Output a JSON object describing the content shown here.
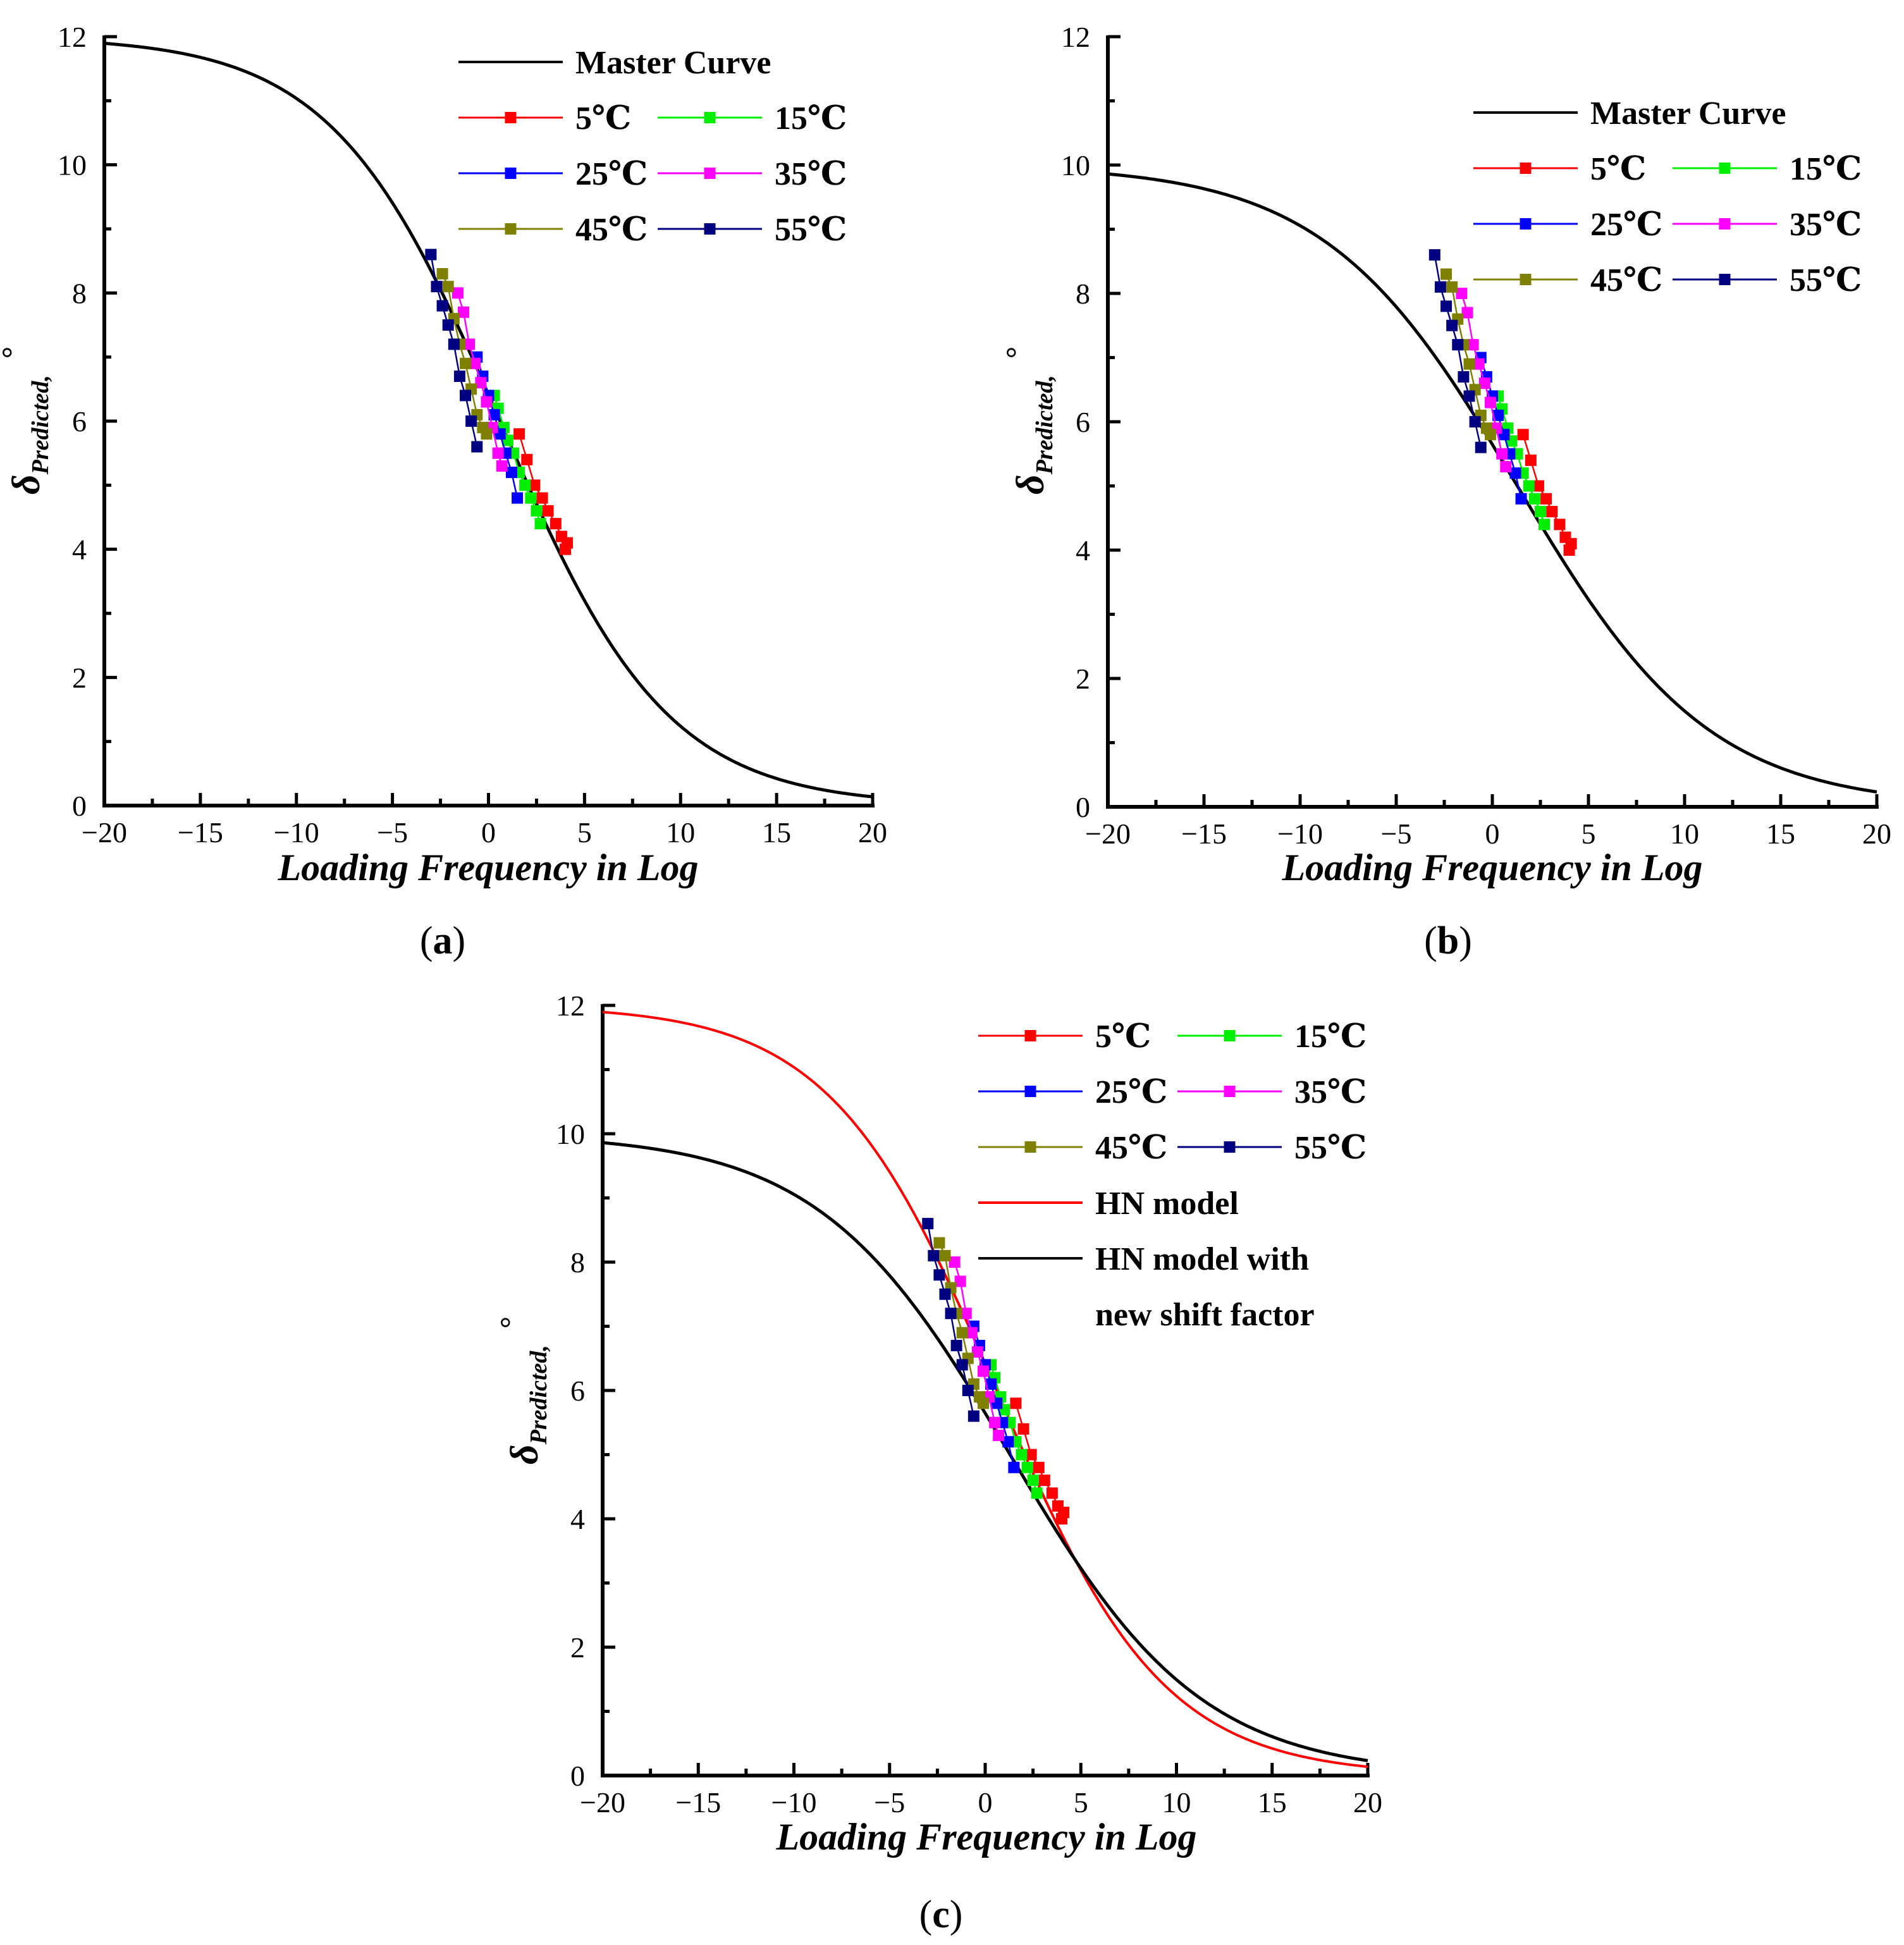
{
  "figure": {
    "panel_labels": [
      {
        "open": "(",
        "letter": "a",
        "close": ")"
      },
      {
        "open": "(",
        "letter": "b",
        "close": ")"
      },
      {
        "open": "(",
        "letter": "c",
        "close": ")"
      }
    ]
  },
  "colors": {
    "5": "#ff0000",
    "15": "#00ee00",
    "25": "#0000ff",
    "35": "#ff00ff",
    "45": "#808000",
    "55": "#000080",
    "master": "#000000",
    "hn": "#ff0000",
    "hn_new": "#000000"
  },
  "chart_data": [
    {
      "type": "line",
      "panel": "a",
      "title": "",
      "xlabel": "Loading Frequency in Log",
      "ylabel": {
        "symbol": "δ",
        "subscript": "Predicted",
        "suffix": ",",
        "unit": "°"
      },
      "xlim": [
        -20,
        20
      ],
      "ylim": [
        0,
        12
      ],
      "xticks": [
        -20,
        -15,
        -10,
        -5,
        0,
        5,
        10,
        15,
        20
      ],
      "xtick_labels": [
        "−20",
        "−15",
        "−10",
        "−5",
        "0",
        "5",
        "10",
        "15",
        "20"
      ],
      "yticks": [
        0,
        2,
        4,
        6,
        8,
        10,
        12
      ],
      "ytick_labels": [
        "0",
        "2",
        "4",
        "6",
        "8",
        "10",
        "12"
      ],
      "legend": {
        "placement": "top-right",
        "entries": [
          {
            "label": "Master Curve",
            "key": "master",
            "marker": false
          },
          {
            "label": "5℃",
            "key": "5",
            "marker": true
          },
          {
            "label": "15℃",
            "key": "15",
            "marker": true
          },
          {
            "label": "25℃",
            "key": "25",
            "marker": true
          },
          {
            "label": "35℃",
            "key": "35",
            "marker": true
          },
          {
            "label": "45℃",
            "key": "45",
            "marker": true
          },
          {
            "label": "55℃",
            "key": "55",
            "marker": true
          }
        ]
      },
      "curves": [
        {
          "name": "Master Curve",
          "key": "master",
          "dmax": 12.0,
          "xc": 0.6,
          "k": 0.23,
          "width": 5
        }
      ],
      "series": [
        {
          "name": "5℃",
          "key": "5",
          "x": [
            1.6,
            2.0,
            2.4,
            2.8,
            3.1,
            3.5,
            3.8,
            4.0,
            4.1
          ],
          "y": [
            5.8,
            5.4,
            5.0,
            4.8,
            4.6,
            4.4,
            4.2,
            4.0,
            4.1
          ]
        },
        {
          "name": "15℃",
          "key": "15",
          "x": [
            0.3,
            0.5,
            0.8,
            1.0,
            1.3,
            1.6,
            1.9,
            2.2,
            2.5,
            2.7
          ],
          "y": [
            6.4,
            6.2,
            5.9,
            5.7,
            5.5,
            5.2,
            5.0,
            4.8,
            4.6,
            4.4
          ]
        },
        {
          "name": "25℃",
          "key": "25",
          "x": [
            -0.6,
            -0.3,
            0.0,
            0.3,
            0.6,
            0.9,
            1.2,
            1.5
          ],
          "y": [
            7.0,
            6.7,
            6.4,
            6.1,
            5.8,
            5.5,
            5.2,
            4.8
          ]
        },
        {
          "name": "35℃",
          "key": "35",
          "x": [
            -1.6,
            -1.3,
            -1.0,
            -0.7,
            -0.4,
            -0.1,
            0.2,
            0.5,
            0.7
          ],
          "y": [
            8.0,
            7.7,
            7.2,
            6.9,
            6.6,
            6.3,
            5.9,
            5.5,
            5.3
          ]
        },
        {
          "name": "45℃",
          "key": "45",
          "x": [
            -2.4,
            -2.1,
            -1.8,
            -1.5,
            -1.2,
            -0.9,
            -0.6,
            -0.3,
            -0.1
          ],
          "y": [
            8.3,
            8.1,
            7.6,
            7.2,
            6.9,
            6.5,
            6.1,
            5.9,
            5.8
          ]
        },
        {
          "name": "55℃",
          "key": "55",
          "x": [
            -3.0,
            -2.7,
            -2.4,
            -2.1,
            -1.8,
            -1.5,
            -1.2,
            -0.9,
            -0.6
          ],
          "y": [
            8.6,
            8.1,
            7.8,
            7.5,
            7.2,
            6.7,
            6.4,
            6.0,
            5.6
          ]
        }
      ]
    },
    {
      "type": "line",
      "panel": "b",
      "title": "",
      "xlabel": "Loading Frequency in Log",
      "ylabel": {
        "symbol": "δ",
        "subscript": "Predicted",
        "suffix": ",",
        "unit": "°"
      },
      "xlim": [
        -20,
        20
      ],
      "ylim": [
        0,
        12
      ],
      "xticks": [
        -20,
        -15,
        -10,
        -5,
        0,
        5,
        10,
        15,
        20
      ],
      "xtick_labels": [
        "−20",
        "−15",
        "−10",
        "−5",
        "0",
        "5",
        "10",
        "15",
        "20"
      ],
      "yticks": [
        0,
        2,
        4,
        6,
        8,
        10,
        12
      ],
      "ytick_labels": [
        "0",
        "2",
        "4",
        "6",
        "8",
        "10",
        "12"
      ],
      "legend": {
        "placement": "top-right",
        "entries": [
          {
            "label": "Master Curve",
            "key": "master",
            "marker": false
          },
          {
            "label": "5℃",
            "key": "5",
            "marker": true
          },
          {
            "label": "15℃",
            "key": "15",
            "marker": true
          },
          {
            "label": "25℃",
            "key": "25",
            "marker": true
          },
          {
            "label": "35℃",
            "key": "35",
            "marker": true
          },
          {
            "label": "45℃",
            "key": "45",
            "marker": true
          },
          {
            "label": "55℃",
            "key": "55",
            "marker": true
          }
        ]
      },
      "curves": [
        {
          "name": "Master Curve",
          "key": "master",
          "dmax": 10.0,
          "xc": 1.3,
          "k": 0.2,
          "width": 5
        }
      ],
      "series": [
        {
          "name": "5℃",
          "key": "5",
          "x": [
            1.6,
            2.0,
            2.4,
            2.8,
            3.1,
            3.5,
            3.8,
            4.0,
            4.1
          ],
          "y": [
            5.8,
            5.4,
            5.0,
            4.8,
            4.6,
            4.4,
            4.2,
            4.0,
            4.1
          ]
        },
        {
          "name": "15℃",
          "key": "15",
          "x": [
            0.3,
            0.5,
            0.8,
            1.0,
            1.3,
            1.6,
            1.9,
            2.2,
            2.5,
            2.7
          ],
          "y": [
            6.4,
            6.2,
            5.9,
            5.7,
            5.5,
            5.2,
            5.0,
            4.8,
            4.6,
            4.4
          ]
        },
        {
          "name": "25℃",
          "key": "25",
          "x": [
            -0.6,
            -0.3,
            0.0,
            0.3,
            0.6,
            0.9,
            1.2,
            1.5
          ],
          "y": [
            7.0,
            6.7,
            6.4,
            6.1,
            5.8,
            5.5,
            5.2,
            4.8
          ]
        },
        {
          "name": "35℃",
          "key": "35",
          "x": [
            -1.6,
            -1.3,
            -1.0,
            -0.7,
            -0.4,
            -0.1,
            0.2,
            0.5,
            0.7
          ],
          "y": [
            8.0,
            7.7,
            7.2,
            6.9,
            6.6,
            6.3,
            5.9,
            5.5,
            5.3
          ]
        },
        {
          "name": "45℃",
          "key": "45",
          "x": [
            -2.4,
            -2.1,
            -1.8,
            -1.5,
            -1.2,
            -0.9,
            -0.6,
            -0.3,
            -0.1
          ],
          "y": [
            8.3,
            8.1,
            7.6,
            7.2,
            6.9,
            6.5,
            6.1,
            5.9,
            5.8
          ]
        },
        {
          "name": "55℃",
          "key": "55",
          "x": [
            -3.0,
            -2.7,
            -2.4,
            -2.1,
            -1.8,
            -1.5,
            -1.2,
            -0.9,
            -0.6
          ],
          "y": [
            8.6,
            8.1,
            7.8,
            7.5,
            7.2,
            6.7,
            6.4,
            6.0,
            5.6
          ]
        }
      ]
    },
    {
      "type": "line",
      "panel": "c",
      "title": "",
      "xlabel": "Loading Frequency in Log",
      "ylabel": {
        "symbol": "δ",
        "subscript": "Predicted",
        "suffix": ",",
        "unit": "°"
      },
      "xlim": [
        -20,
        20
      ],
      "ylim": [
        0,
        12
      ],
      "xticks": [
        -20,
        -15,
        -10,
        -5,
        0,
        5,
        10,
        15,
        20
      ],
      "xtick_labels": [
        "−20",
        "−15",
        "−10",
        "−5",
        "0",
        "5",
        "10",
        "15",
        "20"
      ],
      "yticks": [
        0,
        2,
        4,
        6,
        8,
        10,
        12
      ],
      "ytick_labels": [
        "0",
        "2",
        "4",
        "6",
        "8",
        "10",
        "12"
      ],
      "legend": {
        "placement": "top-right",
        "entries": [
          {
            "label": "5℃",
            "key": "5",
            "marker": true
          },
          {
            "label": "15℃",
            "key": "15",
            "marker": true
          },
          {
            "label": "25℃",
            "key": "25",
            "marker": true
          },
          {
            "label": "35℃",
            "key": "35",
            "marker": true
          },
          {
            "label": "45℃",
            "key": "45",
            "marker": true
          },
          {
            "label": "55℃",
            "key": "55",
            "marker": true
          },
          {
            "label": "HN model",
            "key": "hn",
            "marker": false
          },
          {
            "label": "HN model with",
            "label2": "new shift factor",
            "key": "hn_new",
            "marker": false
          }
        ]
      },
      "curves": [
        {
          "name": "HN model",
          "key": "hn",
          "dmax": 12.0,
          "xc": 0.6,
          "k": 0.23,
          "width": 4
        },
        {
          "name": "HN model with new shift factor",
          "key": "hn_new",
          "dmax": 10.0,
          "xc": 1.3,
          "k": 0.2,
          "width": 5
        }
      ],
      "series": [
        {
          "name": "5℃",
          "key": "5",
          "x": [
            1.6,
            2.0,
            2.4,
            2.8,
            3.1,
            3.5,
            3.8,
            4.0,
            4.1
          ],
          "y": [
            5.8,
            5.4,
            5.0,
            4.8,
            4.6,
            4.4,
            4.2,
            4.0,
            4.1
          ]
        },
        {
          "name": "15℃",
          "key": "15",
          "x": [
            0.3,
            0.5,
            0.8,
            1.0,
            1.3,
            1.6,
            1.9,
            2.2,
            2.5,
            2.7
          ],
          "y": [
            6.4,
            6.2,
            5.9,
            5.7,
            5.5,
            5.2,
            5.0,
            4.8,
            4.6,
            4.4
          ]
        },
        {
          "name": "25℃",
          "key": "25",
          "x": [
            -0.6,
            -0.3,
            0.0,
            0.3,
            0.6,
            0.9,
            1.2,
            1.5
          ],
          "y": [
            7.0,
            6.7,
            6.4,
            6.1,
            5.8,
            5.5,
            5.2,
            4.8
          ]
        },
        {
          "name": "35℃",
          "key": "35",
          "x": [
            -1.6,
            -1.3,
            -1.0,
            -0.7,
            -0.4,
            -0.1,
            0.2,
            0.5,
            0.7
          ],
          "y": [
            8.0,
            7.7,
            7.2,
            6.9,
            6.6,
            6.3,
            5.9,
            5.5,
            5.3
          ]
        },
        {
          "name": "45℃",
          "key": "45",
          "x": [
            -2.4,
            -2.1,
            -1.8,
            -1.5,
            -1.2,
            -0.9,
            -0.6,
            -0.3,
            -0.1
          ],
          "y": [
            8.3,
            8.1,
            7.6,
            7.2,
            6.9,
            6.5,
            6.1,
            5.9,
            5.8
          ]
        },
        {
          "name": "55℃",
          "key": "55",
          "x": [
            -3.0,
            -2.7,
            -2.4,
            -2.1,
            -1.8,
            -1.5,
            -1.2,
            -0.9,
            -0.6
          ],
          "y": [
            8.6,
            8.1,
            7.8,
            7.5,
            7.2,
            6.7,
            6.4,
            6.0,
            5.6
          ]
        }
      ]
    }
  ]
}
